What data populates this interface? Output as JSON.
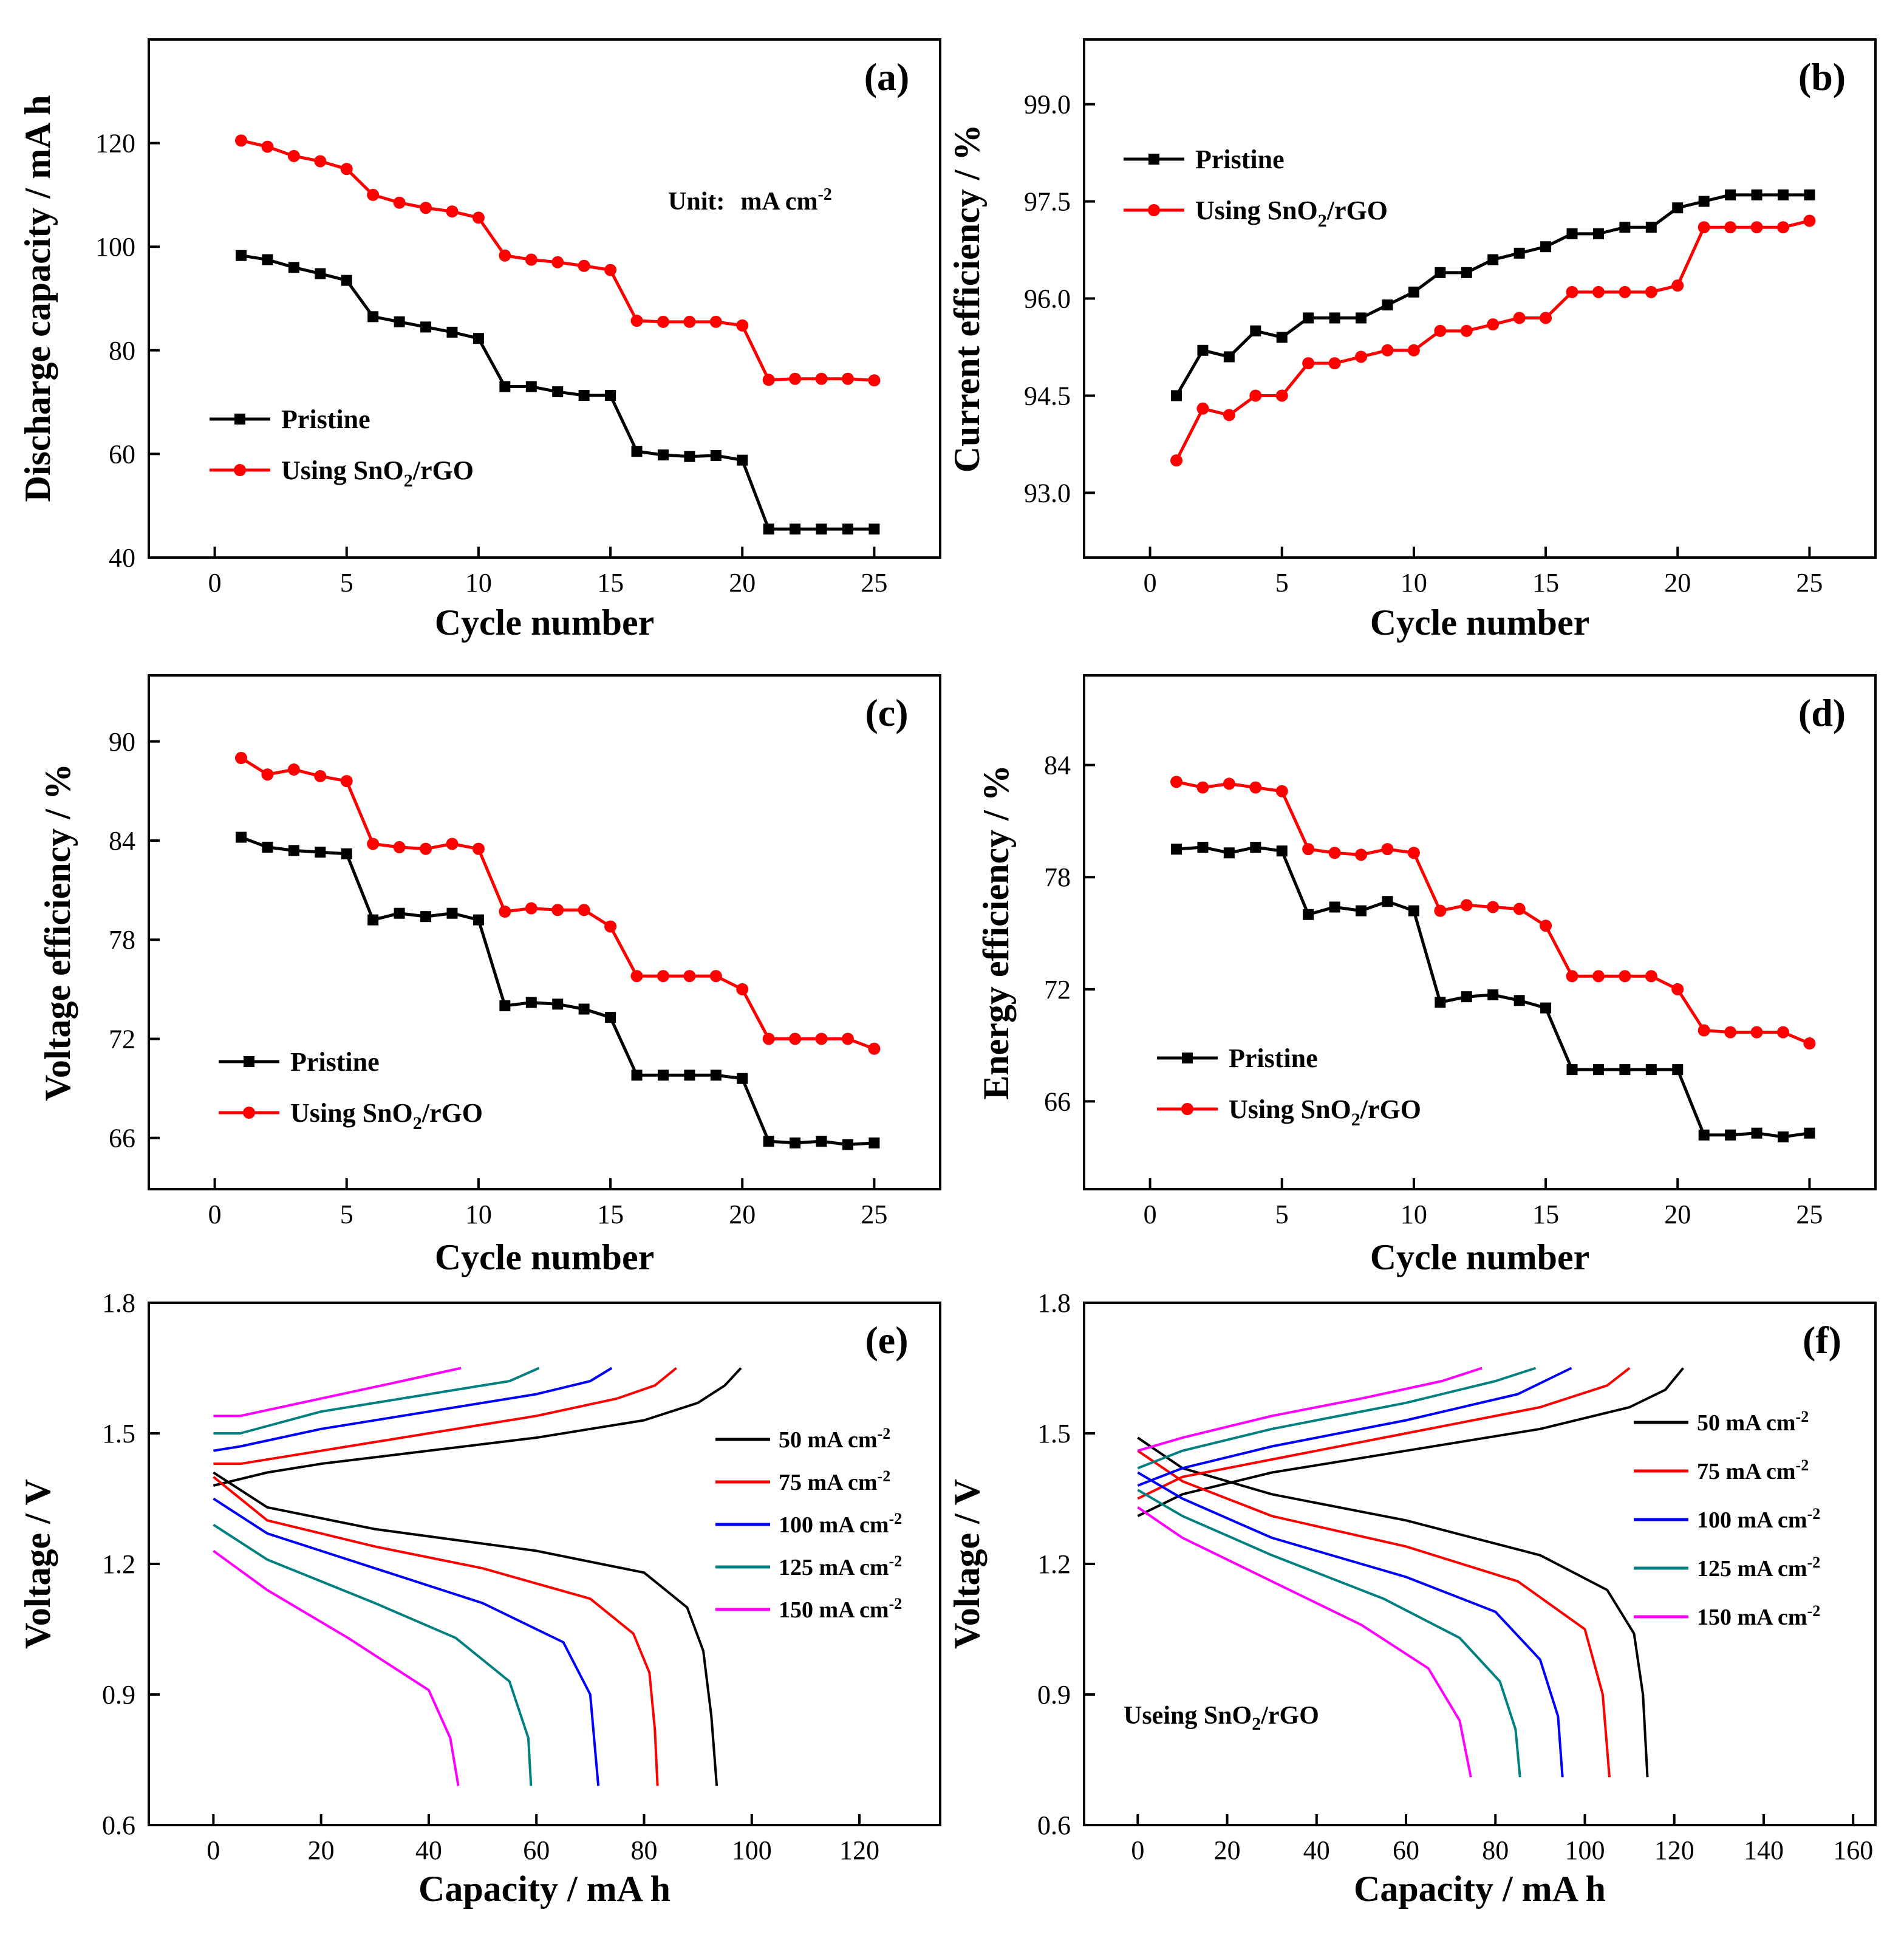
{
  "chart_data": [
    {
      "panel": "(a)",
      "type": "line",
      "xlabel": "Cycle number",
      "ylabel": "Discharge capacity / mA h",
      "xlim": [
        -2.5,
        27.5
      ],
      "ylim": [
        40,
        140
      ],
      "xticks": [
        0,
        5,
        10,
        15,
        20,
        25
      ],
      "yticks": [
        40,
        60,
        80,
        100,
        120
      ],
      "legend_position": "middle-left",
      "annotation": {
        "label": "Unit:",
        "value": "mA cm",
        "exp": "-2"
      },
      "series": [
        {
          "name": "Pristine",
          "color": "#000000",
          "marker": "square",
          "x": [
            1,
            2,
            3,
            4,
            5,
            6,
            7,
            8,
            9,
            10,
            11,
            12,
            13,
            14,
            15,
            16,
            17,
            18,
            19,
            20,
            21,
            22,
            23,
            24,
            25
          ],
          "y": [
            98.3,
            97.5,
            96.0,
            94.8,
            93.5,
            86.5,
            85.5,
            84.5,
            83.5,
            82.3,
            73.0,
            73.0,
            72.0,
            71.3,
            71.3,
            60.5,
            59.8,
            59.5,
            59.7,
            58.8,
            45.5,
            45.5,
            45.5,
            45.5,
            45.5
          ]
        },
        {
          "name": "Using SnO",
          "sub": "2",
          "suffix": "/rGO",
          "color": "#ff0000",
          "marker": "circle",
          "x": [
            1,
            2,
            3,
            4,
            5,
            6,
            7,
            8,
            9,
            10,
            11,
            12,
            13,
            14,
            15,
            16,
            17,
            18,
            19,
            20,
            21,
            22,
            23,
            24,
            25
          ],
          "y": [
            120.5,
            119.3,
            117.5,
            116.5,
            115.0,
            110.0,
            108.5,
            107.5,
            106.8,
            105.6,
            98.3,
            97.5,
            97.0,
            96.3,
            95.5,
            85.7,
            85.5,
            85.5,
            85.5,
            84.8,
            74.3,
            74.5,
            74.5,
            74.5,
            74.2
          ]
        }
      ]
    },
    {
      "panel": "(b)",
      "type": "line",
      "xlabel": "Cycle number",
      "ylabel": "Current efficiency / %",
      "xlim": [
        -2.5,
        27.5
      ],
      "ylim": [
        92.0,
        100.0
      ],
      "xticks": [
        0,
        5,
        10,
        15,
        20,
        25
      ],
      "yticks": [
        "93.0",
        "94.5",
        "96.0",
        "97.5",
        "99.0"
      ],
      "legend_position": "top-left",
      "series": [
        {
          "name": "Pristine",
          "color": "#000000",
          "marker": "square",
          "x": [
            1,
            2,
            3,
            4,
            5,
            6,
            7,
            8,
            9,
            10,
            11,
            12,
            13,
            14,
            15,
            16,
            17,
            18,
            19,
            20,
            21,
            22,
            23,
            24,
            25
          ],
          "y": [
            94.5,
            95.2,
            95.1,
            95.5,
            95.4,
            95.7,
            95.7,
            95.7,
            95.9,
            96.1,
            96.4,
            96.4,
            96.6,
            96.7,
            96.8,
            97.0,
            97.0,
            97.1,
            97.1,
            97.4,
            97.5,
            97.6,
            97.6,
            97.6,
            97.6
          ]
        },
        {
          "name": "Using SnO",
          "sub": "2",
          "suffix": "/rGO",
          "color": "#ff0000",
          "marker": "circle",
          "x": [
            1,
            2,
            3,
            4,
            5,
            6,
            7,
            8,
            9,
            10,
            11,
            12,
            13,
            14,
            15,
            16,
            17,
            18,
            19,
            20,
            21,
            22,
            23,
            24,
            25
          ],
          "y": [
            93.5,
            94.3,
            94.2,
            94.5,
            94.5,
            95.0,
            95.0,
            95.1,
            95.2,
            95.2,
            95.5,
            95.5,
            95.6,
            95.7,
            95.7,
            96.1,
            96.1,
            96.1,
            96.1,
            96.2,
            97.1,
            97.1,
            97.1,
            97.1,
            97.2
          ]
        }
      ]
    },
    {
      "panel": "(c)",
      "type": "line",
      "xlabel": "Cycle number",
      "ylabel": "Voltage efficiency / %",
      "xlim": [
        -2.5,
        27.5
      ],
      "ylim": [
        62.9,
        94.0
      ],
      "xticks": [
        0,
        5,
        10,
        15,
        20,
        25
      ],
      "yticks": [
        66,
        72,
        78,
        84,
        90
      ],
      "legend_position": "lower-left",
      "series": [
        {
          "name": "Pristine",
          "color": "#000000",
          "marker": "square",
          "x": [
            1,
            2,
            3,
            4,
            5,
            6,
            7,
            8,
            9,
            10,
            11,
            12,
            13,
            14,
            15,
            16,
            17,
            18,
            19,
            20,
            21,
            22,
            23,
            24,
            25
          ],
          "y": [
            84.2,
            83.6,
            83.4,
            83.3,
            83.2,
            79.2,
            79.6,
            79.4,
            79.6,
            79.2,
            74.0,
            74.2,
            74.1,
            73.8,
            73.3,
            69.8,
            69.8,
            69.8,
            69.8,
            69.6,
            65.8,
            65.7,
            65.8,
            65.6,
            65.7
          ]
        },
        {
          "name": "Using SnO",
          "sub": "2",
          "suffix": "/rGO",
          "color": "#ff0000",
          "marker": "circle",
          "x": [
            1,
            2,
            3,
            4,
            5,
            6,
            7,
            8,
            9,
            10,
            11,
            12,
            13,
            14,
            15,
            16,
            17,
            18,
            19,
            20,
            21,
            22,
            23,
            24,
            25
          ],
          "y": [
            89.0,
            88.0,
            88.3,
            87.9,
            87.6,
            83.8,
            83.6,
            83.5,
            83.8,
            83.5,
            79.7,
            79.9,
            79.8,
            79.8,
            78.8,
            75.8,
            75.8,
            75.8,
            75.8,
            75.0,
            72.0,
            72.0,
            72.0,
            72.0,
            71.4
          ]
        }
      ]
    },
    {
      "panel": "(d)",
      "type": "line",
      "xlabel": "Cycle number",
      "ylabel": "Energy efficiency / %",
      "xlim": [
        -2.5,
        27.5
      ],
      "ylim": [
        61.3,
        88.8
      ],
      "xticks": [
        0,
        5,
        10,
        15,
        20,
        25
      ],
      "yticks": [
        66,
        72,
        78,
        84
      ],
      "legend_position": "lower-left",
      "series": [
        {
          "name": "Pristine",
          "color": "#000000",
          "marker": "square",
          "x": [
            1,
            2,
            3,
            4,
            5,
            6,
            7,
            8,
            9,
            10,
            11,
            12,
            13,
            14,
            15,
            16,
            17,
            18,
            19,
            20,
            21,
            22,
            23,
            24,
            25
          ],
          "y": [
            79.5,
            79.6,
            79.3,
            79.6,
            79.4,
            76.0,
            76.4,
            76.2,
            76.7,
            76.2,
            71.3,
            71.6,
            71.7,
            71.4,
            71.0,
            67.7,
            67.7,
            67.7,
            67.7,
            67.7,
            64.2,
            64.2,
            64.3,
            64.1,
            64.3
          ]
        },
        {
          "name": "Using SnO",
          "sub": "2",
          "suffix": "/rGO",
          "color": "#ff0000",
          "marker": "circle",
          "x": [
            1,
            2,
            3,
            4,
            5,
            6,
            7,
            8,
            9,
            10,
            11,
            12,
            13,
            14,
            15,
            16,
            17,
            18,
            19,
            20,
            21,
            22,
            23,
            24,
            25
          ],
          "y": [
            83.1,
            82.8,
            83.0,
            82.8,
            82.6,
            79.5,
            79.3,
            79.2,
            79.5,
            79.3,
            76.2,
            76.5,
            76.4,
            76.3,
            75.4,
            72.7,
            72.7,
            72.7,
            72.7,
            72.0,
            69.8,
            69.7,
            69.7,
            69.7,
            69.1
          ]
        }
      ]
    },
    {
      "panel": "(e)",
      "type": "line",
      "xlabel": "Capacity / mA h",
      "ylabel": "Voltage / V",
      "xlim": [
        -12,
        135
      ],
      "ylim": [
        0.6,
        1.8
      ],
      "xticks": [
        0,
        20,
        40,
        60,
        80,
        100,
        120
      ],
      "yticks": [
        "0.6",
        "0.9",
        "1.2",
        "1.5",
        "1.8"
      ],
      "legend_position": "right",
      "series": [
        {
          "name": "50 mA cm",
          "exp": "-2",
          "color": "#000000",
          "charge_x": [
            0,
            10,
            20,
            40,
            60,
            80,
            90,
            95,
            98
          ],
          "charge_y": [
            1.38,
            1.41,
            1.43,
            1.46,
            1.49,
            1.53,
            1.57,
            1.61,
            1.65
          ],
          "discharge_x": [
            0,
            10,
            30,
            60,
            80,
            88,
            91,
            92.5,
            93.5
          ],
          "discharge_y": [
            1.41,
            1.33,
            1.28,
            1.23,
            1.18,
            1.1,
            1.0,
            0.85,
            0.69
          ]
        },
        {
          "name": "75 mA cm",
          "exp": "-2",
          "color": "#ff0000",
          "charge_x": [
            0,
            5,
            20,
            40,
            60,
            75,
            82,
            86
          ],
          "charge_y": [
            1.43,
            1.43,
            1.46,
            1.5,
            1.54,
            1.58,
            1.61,
            1.65
          ],
          "discharge_x": [
            0,
            10,
            30,
            50,
            70,
            78,
            81,
            82,
            82.5
          ],
          "discharge_y": [
            1.4,
            1.3,
            1.24,
            1.19,
            1.12,
            1.04,
            0.95,
            0.82,
            0.69
          ]
        },
        {
          "name": "100 mA cm",
          "exp": "-2",
          "color": "#0000ff",
          "charge_x": [
            0,
            5,
            20,
            40,
            60,
            70,
            74
          ],
          "charge_y": [
            1.46,
            1.47,
            1.51,
            1.55,
            1.59,
            1.62,
            1.65
          ],
          "discharge_x": [
            0,
            10,
            30,
            50,
            65,
            70,
            71.5
          ],
          "discharge_y": [
            1.35,
            1.27,
            1.19,
            1.11,
            1.02,
            0.9,
            0.69
          ]
        },
        {
          "name": "125 mA cm",
          "exp": "-2",
          "color": "#008080",
          "charge_x": [
            0,
            5,
            20,
            40,
            55,
            60.5
          ],
          "charge_y": [
            1.5,
            1.5,
            1.55,
            1.59,
            1.62,
            1.65
          ],
          "discharge_x": [
            0,
            10,
            30,
            45,
            55,
            58.5,
            59
          ],
          "discharge_y": [
            1.29,
            1.21,
            1.11,
            1.03,
            0.93,
            0.8,
            0.69
          ]
        },
        {
          "name": "150 mA cm",
          "exp": "-2",
          "color": "#ff00ff",
          "charge_x": [
            0,
            5,
            20,
            35,
            46
          ],
          "charge_y": [
            1.54,
            1.54,
            1.58,
            1.62,
            1.65
          ],
          "discharge_x": [
            0,
            10,
            25,
            40,
            44,
            45.5
          ],
          "discharge_y": [
            1.23,
            1.14,
            1.03,
            0.91,
            0.8,
            0.69
          ]
        }
      ]
    },
    {
      "panel": "(f)",
      "type": "line",
      "xlabel": "Capacity / mA h",
      "ylabel": "Voltage / V",
      "xlim": [
        -12,
        165
      ],
      "ylim": [
        0.6,
        1.8
      ],
      "xticks": [
        0,
        20,
        40,
        60,
        80,
        100,
        120,
        140,
        160
      ],
      "yticks": [
        "0.6",
        "0.9",
        "1.2",
        "1.5",
        "1.8"
      ],
      "legend_position": "right",
      "annotation": {
        "text": "Useing SnO",
        "sub": "2",
        "suffix": "/rGO"
      },
      "series": [
        {
          "name": "50 mA cm",
          "exp": "-2",
          "color": "#000000",
          "charge_x": [
            0,
            10,
            30,
            60,
            90,
            110,
            118,
            122
          ],
          "charge_y": [
            1.31,
            1.36,
            1.41,
            1.46,
            1.51,
            1.56,
            1.6,
            1.65
          ],
          "discharge_x": [
            0,
            10,
            30,
            60,
            90,
            105,
            111,
            113,
            114
          ],
          "discharge_y": [
            1.49,
            1.42,
            1.36,
            1.3,
            1.22,
            1.14,
            1.04,
            0.9,
            0.71
          ]
        },
        {
          "name": "75 mA cm",
          "exp": "-2",
          "color": "#ff0000",
          "charge_x": [
            0,
            10,
            30,
            60,
            90,
            105,
            110
          ],
          "charge_y": [
            1.35,
            1.4,
            1.44,
            1.5,
            1.56,
            1.61,
            1.65
          ],
          "discharge_x": [
            0,
            10,
            30,
            60,
            85,
            100,
            104,
            105.5
          ],
          "discharge_y": [
            1.46,
            1.39,
            1.31,
            1.24,
            1.16,
            1.05,
            0.9,
            0.71
          ]
        },
        {
          "name": "100 mA cm",
          "exp": "-2",
          "color": "#0000ff",
          "charge_x": [
            0,
            10,
            30,
            60,
            85,
            97
          ],
          "charge_y": [
            1.38,
            1.42,
            1.47,
            1.53,
            1.59,
            1.65
          ],
          "discharge_x": [
            0,
            10,
            30,
            60,
            80,
            90,
            94,
            95
          ],
          "discharge_y": [
            1.41,
            1.35,
            1.26,
            1.17,
            1.09,
            0.98,
            0.85,
            0.71
          ]
        },
        {
          "name": "125 mA cm",
          "exp": "-2",
          "color": "#008080",
          "charge_x": [
            0,
            10,
            30,
            60,
            80,
            89
          ],
          "charge_y": [
            1.42,
            1.46,
            1.51,
            1.57,
            1.62,
            1.65
          ],
          "discharge_x": [
            0,
            10,
            30,
            55,
            72,
            81,
            84.5,
            85.5
          ],
          "discharge_y": [
            1.37,
            1.31,
            1.22,
            1.12,
            1.03,
            0.93,
            0.82,
            0.71
          ]
        },
        {
          "name": "150 mA cm",
          "exp": "-2",
          "color": "#ff00ff",
          "charge_x": [
            0,
            10,
            30,
            50,
            68,
            77
          ],
          "charge_y": [
            1.46,
            1.49,
            1.54,
            1.58,
            1.62,
            1.65
          ],
          "discharge_x": [
            0,
            10,
            30,
            50,
            65,
            72,
            74.5
          ],
          "discharge_y": [
            1.33,
            1.26,
            1.16,
            1.06,
            0.96,
            0.84,
            0.71
          ]
        }
      ]
    }
  ]
}
